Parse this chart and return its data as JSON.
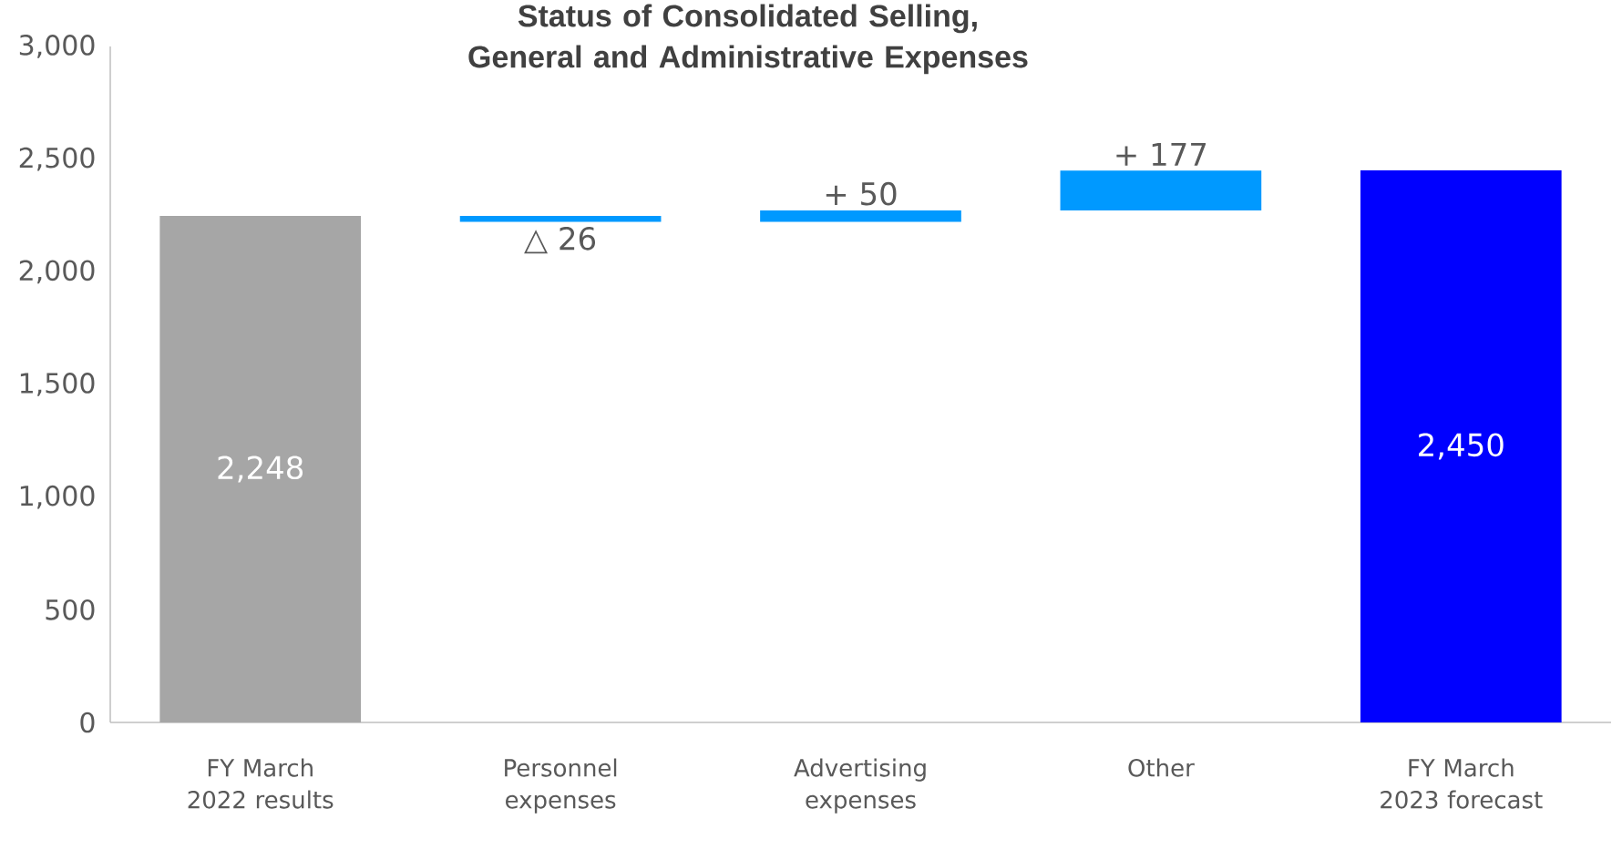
{
  "chart_data": {
    "type": "bar",
    "title": "Status of Consolidated Selling, General and Administrative Expenses",
    "categories": [
      "FY March 2022 results",
      "Personnel expenses",
      "Advertising expenses",
      "Other",
      "FY March 2023 forecast"
    ],
    "values": [
      2248,
      -26,
      50,
      177,
      2450
    ],
    "base": [
      0,
      2248,
      2222,
      2272,
      0
    ],
    "colors": [
      "#a6a6a6",
      "#0099ff",
      "#0099ff",
      "#0099ff",
      "#0000ff"
    ],
    "value_labels": [
      "2,248",
      "△ 26",
      "+ 50",
      "+ 177",
      "2,450"
    ],
    "ylim": [
      0,
      3000
    ],
    "yticks": [
      {
        "value": 0,
        "label": "0"
      },
      {
        "value": 500,
        "label": "500"
      },
      {
        "value": 1000,
        "label": "1,000"
      },
      {
        "value": 1500,
        "label": "1,500"
      },
      {
        "value": 2000,
        "label": "2,000"
      },
      {
        "value": 2500,
        "label": "2,500"
      },
      {
        "value": 3000,
        "label": "3,000"
      }
    ]
  }
}
